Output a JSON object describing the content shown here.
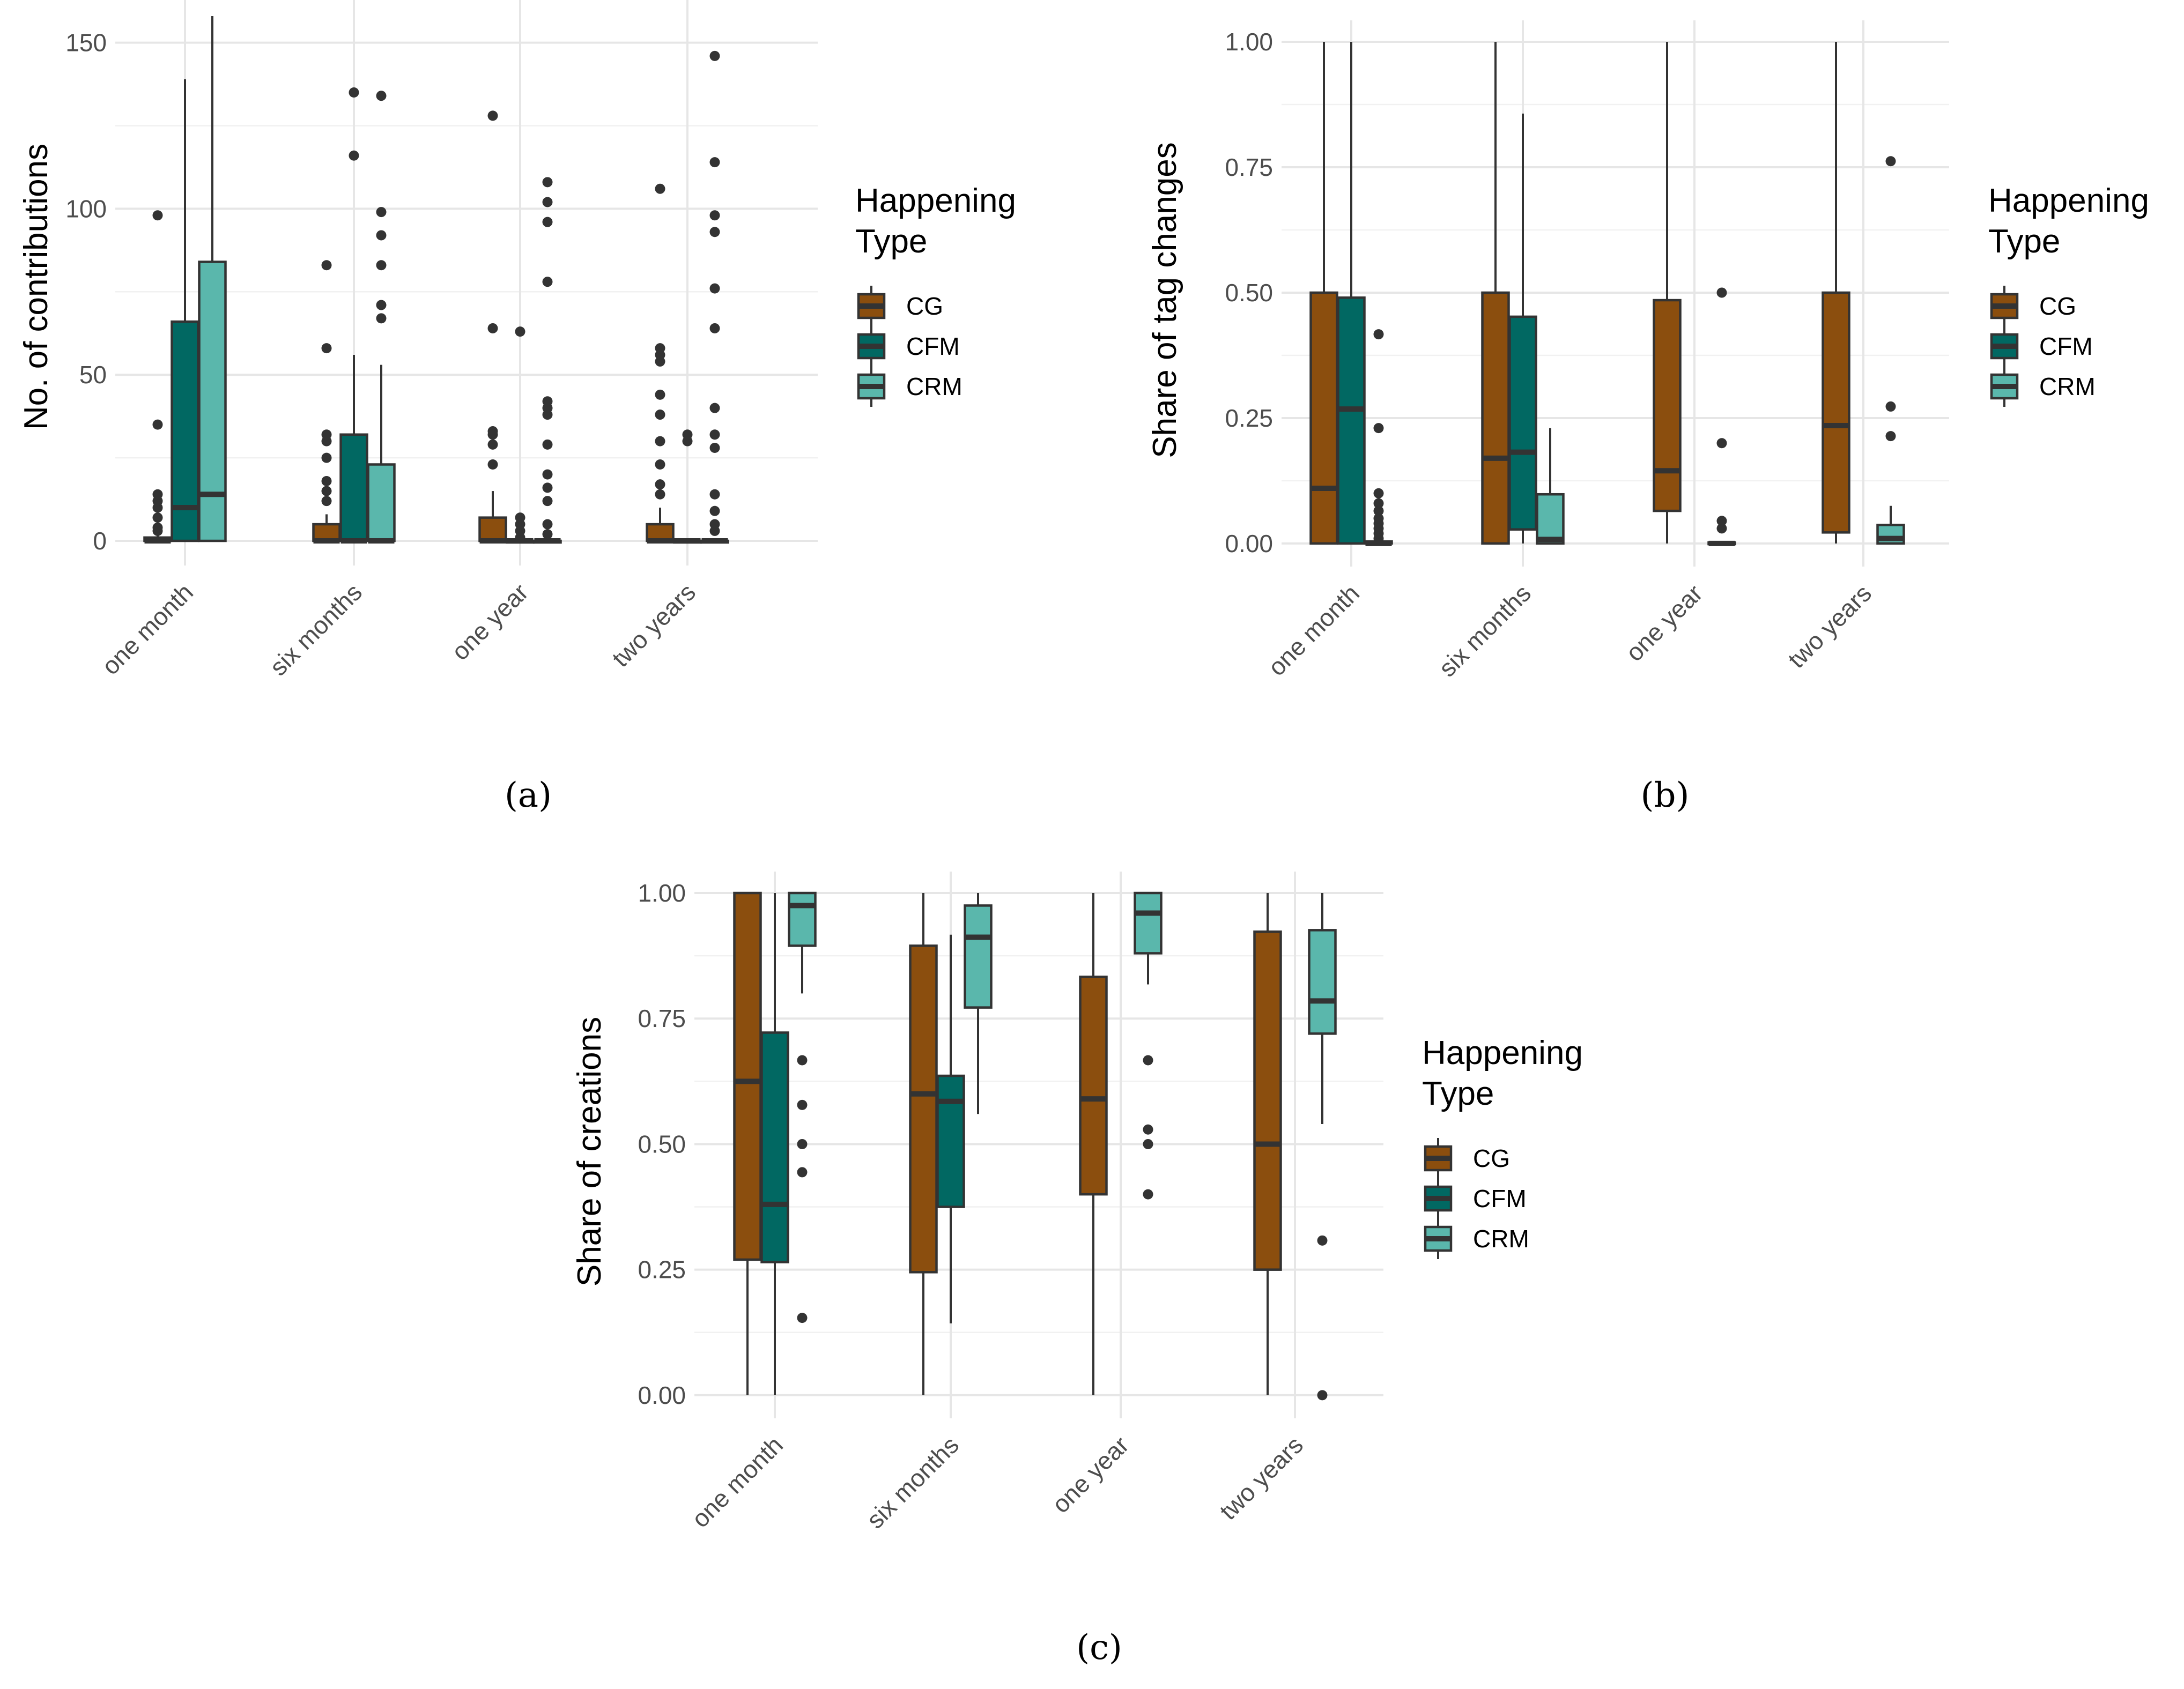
{
  "colors": {
    "CG": "#8B4E0E",
    "CFM": "#016862",
    "CRM": "#5AB7AC",
    "ink": "#333333"
  },
  "legend": {
    "title_line1": "Happening",
    "title_line2": "Type",
    "items": [
      "CG",
      "CFM",
      "CRM"
    ]
  },
  "chart_data": [
    {
      "id": "a",
      "caption": "(a)",
      "type": "boxplot",
      "ylabel": "No. of contributions",
      "ylim": [
        -5,
        158
      ],
      "yticks": [
        0,
        50,
        100,
        150
      ],
      "ytick_labels": [
        "0",
        "50",
        "100",
        "150"
      ],
      "minor_yticks": [
        25,
        75,
        125
      ],
      "categories": [
        "one month",
        "six months",
        "one year",
        "two years"
      ],
      "series": [
        {
          "name": "CG",
          "boxes": [
            {
              "q1": 0,
              "median": 0,
              "q3": 1,
              "lo": 0,
              "hi": 2,
              "outliers": [
                3,
                4,
                7,
                10,
                12,
                14,
                35,
                98
              ]
            },
            {
              "q1": 0,
              "median": 0,
              "q3": 5,
              "lo": 0,
              "hi": 8,
              "outliers": [
                12,
                15,
                18,
                25,
                30,
                32,
                58,
                83
              ]
            },
            {
              "q1": 0,
              "median": 0,
              "q3": 7,
              "lo": 0,
              "hi": 15,
              "outliers": [
                23,
                29,
                32,
                33,
                64,
                128
              ]
            },
            {
              "q1": 0,
              "median": 0,
              "q3": 5,
              "lo": 0,
              "hi": 10,
              "outliers": [
                14,
                17,
                23,
                30,
                38,
                44,
                54,
                56,
                58,
                106
              ]
            }
          ]
        },
        {
          "name": "CFM",
          "boxes": [
            {
              "q1": 0,
              "median": 10,
              "q3": 66,
              "lo": 0,
              "hi": 139,
              "outliers": []
            },
            {
              "q1": 0,
              "median": 0,
              "q3": 32,
              "lo": 0,
              "hi": 56,
              "outliers": [
                116,
                135
              ]
            },
            {
              "q1": 0,
              "median": 0,
              "q3": 0,
              "lo": 0,
              "hi": 0,
              "outliers": [
                1,
                3,
                5,
                7,
                63
              ]
            },
            {
              "q1": 0,
              "median": 0,
              "q3": 0,
              "lo": 0,
              "hi": 0,
              "outliers": [
                30,
                32
              ]
            }
          ]
        },
        {
          "name": "CRM",
          "boxes": [
            {
              "q1": 0,
              "median": 14,
              "q3": 84,
              "lo": 0,
              "hi": 158,
              "outliers": []
            },
            {
              "q1": 0,
              "median": 0,
              "q3": 23,
              "lo": 0,
              "hi": 53,
              "outliers": [
                67,
                71,
                83,
                92,
                99,
                134
              ]
            },
            {
              "q1": 0,
              "median": 0,
              "q3": 0,
              "lo": 0,
              "hi": 0,
              "outliers": [
                2,
                5,
                12,
                16,
                20,
                29,
                38,
                40,
                42,
                78,
                96,
                102,
                108
              ]
            },
            {
              "q1": 0,
              "median": 0,
              "q3": 0,
              "lo": 0,
              "hi": 0,
              "outliers": [
                3,
                5,
                9,
                14,
                28,
                32,
                40,
                64,
                76,
                93,
                98,
                114,
                146
              ]
            }
          ]
        }
      ]
    },
    {
      "id": "b",
      "caption": "(b)",
      "type": "boxplot",
      "ylabel": "Share of tag changes",
      "ylim": [
        -0.03,
        1.0
      ],
      "yticks": [
        0,
        0.25,
        0.5,
        0.75,
        1.0
      ],
      "ytick_labels": [
        "0.00",
        "0.25",
        "0.50",
        "0.75",
        "1.00"
      ],
      "minor_yticks": [
        0.125,
        0.375,
        0.625,
        0.875
      ],
      "categories": [
        "one month",
        "six months",
        "one year",
        "two years"
      ],
      "series": [
        {
          "name": "CG",
          "boxes": [
            {
              "q1": 0,
              "median": 0.11,
              "q3": 0.5,
              "lo": 0,
              "hi": 1.0,
              "outliers": []
            },
            {
              "q1": 0,
              "median": 0.17,
              "q3": 0.5,
              "lo": 0,
              "hi": 1.0,
              "outliers": []
            },
            {
              "q1": 0.065,
              "median": 0.145,
              "q3": 0.485,
              "lo": 0,
              "hi": 1.0,
              "outliers": []
            },
            {
              "q1": 0.022,
              "median": 0.235,
              "q3": 0.5,
              "lo": 0,
              "hi": 1.0,
              "outliers": []
            }
          ]
        },
        {
          "name": "CFM",
          "boxes": [
            {
              "q1": 0,
              "median": 0.268,
              "q3": 0.49,
              "lo": 0,
              "hi": 1.0,
              "outliers": []
            },
            {
              "q1": 0.028,
              "median": 0.182,
              "q3": 0.452,
              "lo": 0,
              "hi": 0.857,
              "outliers": []
            },
            null,
            null
          ]
        },
        {
          "name": "CRM",
          "boxes": [
            {
              "q1": 0,
              "median": 0,
              "q3": 0.004,
              "lo": 0,
              "hi": 0.004,
              "outliers": [
                0.01,
                0.02,
                0.03,
                0.04,
                0.05,
                0.065,
                0.08,
                0.1,
                0.23,
                0.417
              ]
            },
            {
              "q1": 0,
              "median": 0.008,
              "q3": 0.098,
              "lo": 0,
              "hi": 0.23,
              "outliers": []
            },
            {
              "q1": 0,
              "median": 0,
              "q3": 0.002,
              "lo": 0,
              "hi": 0.002,
              "outliers": [
                0.03,
                0.045,
                0.2,
                0.5
              ]
            },
            {
              "q1": 0,
              "median": 0.01,
              "q3": 0.037,
              "lo": 0,
              "hi": 0.075,
              "outliers": [
                0.214,
                0.273,
                0.762
              ]
            }
          ]
        }
      ]
    },
    {
      "id": "c",
      "caption": "(c)",
      "type": "boxplot",
      "ylabel": "Share of creations",
      "ylim": [
        -0.03,
        1.0
      ],
      "yticks": [
        0,
        0.25,
        0.5,
        0.75,
        1.0
      ],
      "ytick_labels": [
        "0.00",
        "0.25",
        "0.50",
        "0.75",
        "1.00"
      ],
      "minor_yticks": [
        0.125,
        0.375,
        0.625,
        0.875
      ],
      "categories": [
        "one month",
        "six months",
        "one year",
        "two years"
      ],
      "series": [
        {
          "name": "CG",
          "boxes": [
            {
              "q1": 0.27,
              "median": 0.625,
              "q3": 1.0,
              "lo": 0,
              "hi": 1.0,
              "outliers": []
            },
            {
              "q1": 0.245,
              "median": 0.6,
              "q3": 0.895,
              "lo": 0,
              "hi": 1.0,
              "outliers": []
            },
            {
              "q1": 0.4,
              "median": 0.59,
              "q3": 0.833,
              "lo": 0,
              "hi": 1.0,
              "outliers": []
            },
            {
              "q1": 0.25,
              "median": 0.5,
              "q3": 0.923,
              "lo": 0,
              "hi": 1.0,
              "outliers": []
            }
          ]
        },
        {
          "name": "CFM",
          "boxes": [
            {
              "q1": 0.265,
              "median": 0.38,
              "q3": 0.722,
              "lo": 0,
              "hi": 1.0,
              "outliers": []
            },
            {
              "q1": 0.375,
              "median": 0.585,
              "q3": 0.636,
              "lo": 0.143,
              "hi": 0.917,
              "outliers": []
            },
            null,
            null
          ]
        },
        {
          "name": "CRM",
          "boxes": [
            {
              "q1": 0.895,
              "median": 0.975,
              "q3": 1.0,
              "lo": 0.8,
              "hi": 1.0,
              "outliers": [
                0.154,
                0.444,
                0.5,
                0.578,
                0.667
              ]
            },
            {
              "q1": 0.772,
              "median": 0.912,
              "q3": 0.975,
              "lo": 0.56,
              "hi": 1.0,
              "outliers": []
            },
            {
              "q1": 0.88,
              "median": 0.96,
              "q3": 1.0,
              "lo": 0.818,
              "hi": 1.0,
              "outliers": [
                0.4,
                0.5,
                0.529,
                0.667
              ]
            },
            {
              "q1": 0.72,
              "median": 0.785,
              "q3": 0.926,
              "lo": 0.54,
              "hi": 1.0,
              "outliers": [
                0.0,
                0.308
              ]
            }
          ]
        }
      ]
    }
  ]
}
